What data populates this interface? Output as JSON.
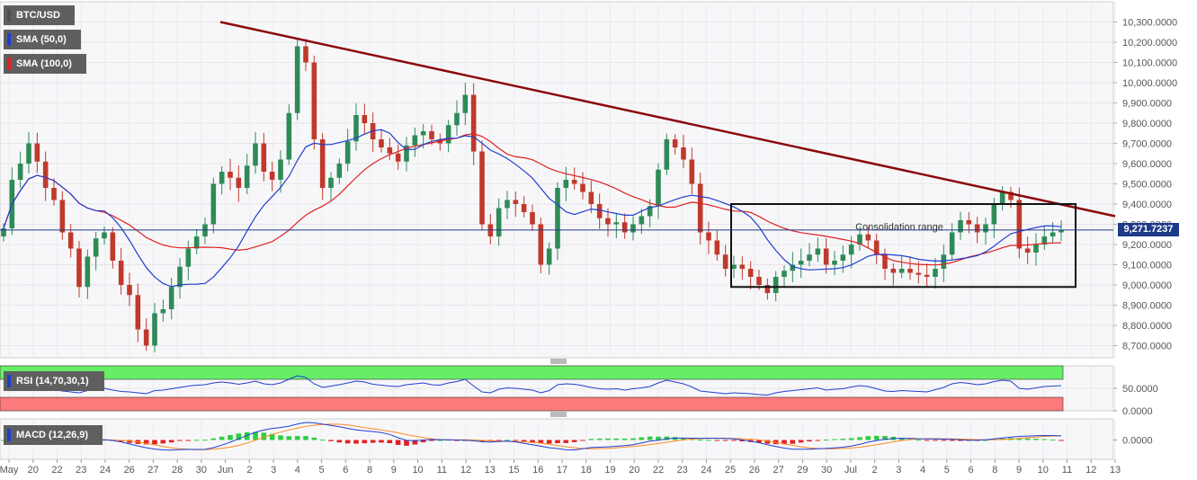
{
  "chart_data": [
    {
      "type": "candlestick",
      "title": "BTC/USD",
      "indicators": [
        {
          "name": "SMA (50,0)",
          "color": "#1f3fd1"
        },
        {
          "name": "SMA (100,0)",
          "color": "#e02020"
        }
      ],
      "current_price_label": "9,271.7237",
      "y_ticks": [
        "10,300.0000",
        "10,200.0000",
        "10,100.0000",
        "10,000.0000",
        "9,900.0000",
        "9,800.0000",
        "9,700.0000",
        "9,600.0000",
        "9,500.0000",
        "9,400.0000",
        "9,300.0000",
        "9,200.0000",
        "9,100.0000",
        "9,000.0000",
        "8,900.0000",
        "8,800.0000",
        "8,700.0000"
      ],
      "ylim": [
        8640,
        10400
      ],
      "x_ticks": [
        "May",
        "20",
        "22",
        "23",
        "24",
        "26",
        "27",
        "28",
        "30",
        "Jun",
        "2",
        "3",
        "4",
        "5",
        "6",
        "8",
        "9",
        "10",
        "11",
        "12",
        "13",
        "15",
        "16",
        "17",
        "18",
        "19",
        "20",
        "22",
        "23",
        "24",
        "25",
        "26",
        "27",
        "29",
        "30",
        "Jul",
        "2",
        "3",
        "4",
        "5",
        "6",
        "8",
        "9",
        "10",
        "11",
        "12",
        "13"
      ],
      "close_series": [
        9280,
        9520,
        9600,
        9700,
        9610,
        9480,
        9420,
        9260,
        9180,
        8990,
        9140,
        9230,
        9260,
        9120,
        9000,
        8950,
        8780,
        8700,
        8860,
        8880,
        8990,
        9090,
        9180,
        9240,
        9300,
        9500,
        9560,
        9530,
        9480,
        9590,
        9700,
        9560,
        9520,
        9620,
        9850,
        10180,
        10100,
        9720,
        9480,
        9530,
        9600,
        9710,
        9840,
        9800,
        9720,
        9680,
        9650,
        9610,
        9690,
        9740,
        9760,
        9720,
        9700,
        9790,
        9850,
        9940,
        9660,
        9300,
        9240,
        9380,
        9420,
        9400,
        9360,
        9300,
        9100,
        9180,
        9480,
        9520,
        9500,
        9460,
        9400,
        9330,
        9300,
        9310,
        9260,
        9300,
        9340,
        9390,
        9570,
        9720,
        9680,
        9620,
        9500,
        9260,
        9220,
        9150,
        9080,
        9100,
        9080,
        9040,
        9000,
        8960,
        9040,
        9070,
        9100,
        9120,
        9150,
        9180,
        9100,
        9120,
        9150,
        9200,
        9250,
        9220,
        9150,
        9080,
        9060,
        9080,
        9060,
        9050,
        9040,
        9080,
        9150,
        9260,
        9320,
        9300,
        9260,
        9300,
        9400,
        9460,
        9420,
        9180,
        9160,
        9200,
        9240,
        9260,
        9272
      ],
      "trendline": {
        "start_value": 10300,
        "end_value": 9340,
        "label": ""
      },
      "consolidation_range": {
        "label": "Consolidation range",
        "high": 9400,
        "low": 8990
      },
      "horizontal_line_value": 9271.7237
    },
    {
      "type": "line",
      "title": "RSI (14,70,30,1)",
      "y_ticks": [
        "50.0000",
        "0.0000"
      ],
      "overbought_label": "",
      "zones": {
        "upper": 70,
        "lower": 30
      },
      "values": [
        48,
        55,
        58,
        60,
        55,
        50,
        47,
        44,
        42,
        40,
        45,
        48,
        50,
        46,
        43,
        42,
        40,
        38,
        45,
        46,
        49,
        52,
        55,
        57,
        58,
        62,
        64,
        62,
        59,
        62,
        66,
        60,
        58,
        62,
        70,
        78,
        74,
        60,
        52,
        55,
        58,
        62,
        66,
        64,
        59,
        57,
        55,
        54,
        58,
        60,
        62,
        58,
        57,
        62,
        65,
        70,
        55,
        42,
        40,
        48,
        51,
        50,
        48,
        46,
        40,
        45,
        58,
        60,
        59,
        56,
        52,
        49,
        48,
        49,
        46,
        49,
        51,
        54,
        62,
        68,
        64,
        60,
        53,
        44,
        42,
        40,
        38,
        40,
        39,
        38,
        36,
        35,
        40,
        43,
        45,
        47,
        49,
        51,
        46,
        48,
        49,
        53,
        56,
        54,
        49,
        44,
        43,
        45,
        44,
        43,
        42,
        47,
        52,
        60,
        63,
        61,
        58,
        60,
        65,
        68,
        66,
        50,
        48,
        51,
        54,
        55,
        56
      ]
    },
    {
      "type": "histogram+line",
      "title": "MACD (12,26,9)",
      "y_ticks": [
        "0.0000"
      ],
      "macd_color": "#1f3fd1",
      "signal_color": "#ff8a1f",
      "hist_positive_color": "#2ecc40",
      "hist_negative_color": "#e02020"
    }
  ],
  "colors": {
    "trendline": "#8b0a0a",
    "rsi_overbought_zone": "#66ee66",
    "rsi_oversold_zone": "#ff7a7a",
    "up_candle": "#2e8b57",
    "down_candle": "#c0392b",
    "price_line": "#1f3a8a"
  }
}
